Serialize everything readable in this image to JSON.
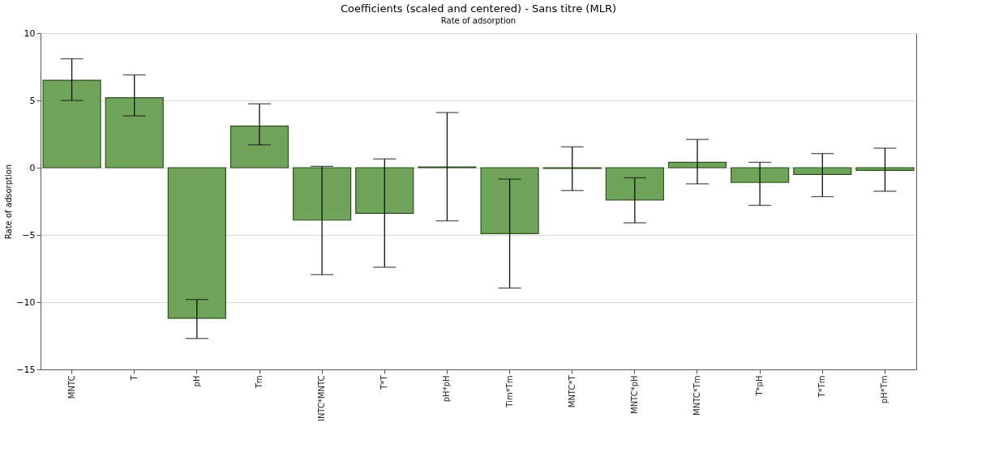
{
  "chart_data": {
    "type": "bar",
    "title": "Coefficients (scaled and centered) - Sans titre (MLR)",
    "subtitle": "Rate of adsorption",
    "ylabel": "Rate of adsorption",
    "categories": [
      "MNTC",
      "T",
      "pH",
      "Tm",
      "INTC*MNTC",
      "T*T",
      "pH*pH",
      "Tim*Tm",
      "MNTC*T",
      "MNTC*pH",
      "MNTC*Tm",
      "T*pH",
      "T*Tm",
      "pH*Tm"
    ],
    "values": [
      6.5,
      5.2,
      -11.2,
      3.1,
      -3.9,
      -3.4,
      0.05,
      -4.9,
      -0.05,
      -2.4,
      0.4,
      -1.1,
      -0.5,
      -0.2
    ],
    "errors": [
      [
        5.0,
        8.1
      ],
      [
        3.85,
        6.9
      ],
      [
        -12.7,
        -9.8
      ],
      [
        1.7,
        4.75
      ],
      [
        -7.95,
        0.1
      ],
      [
        -7.4,
        0.65
      ],
      [
        -3.95,
        4.1
      ],
      [
        -8.95,
        -0.85
      ],
      [
        -1.7,
        1.55
      ],
      [
        -4.1,
        -0.75
      ],
      [
        -1.2,
        2.1
      ],
      [
        -2.8,
        0.4
      ],
      [
        -2.15,
        1.05
      ],
      [
        -1.75,
        1.45
      ]
    ],
    "color": "#6fa45a",
    "ylim": [
      -15,
      10
    ],
    "yticks": [
      -15,
      -10,
      -5,
      0,
      5,
      10
    ],
    "grid": "y"
  }
}
